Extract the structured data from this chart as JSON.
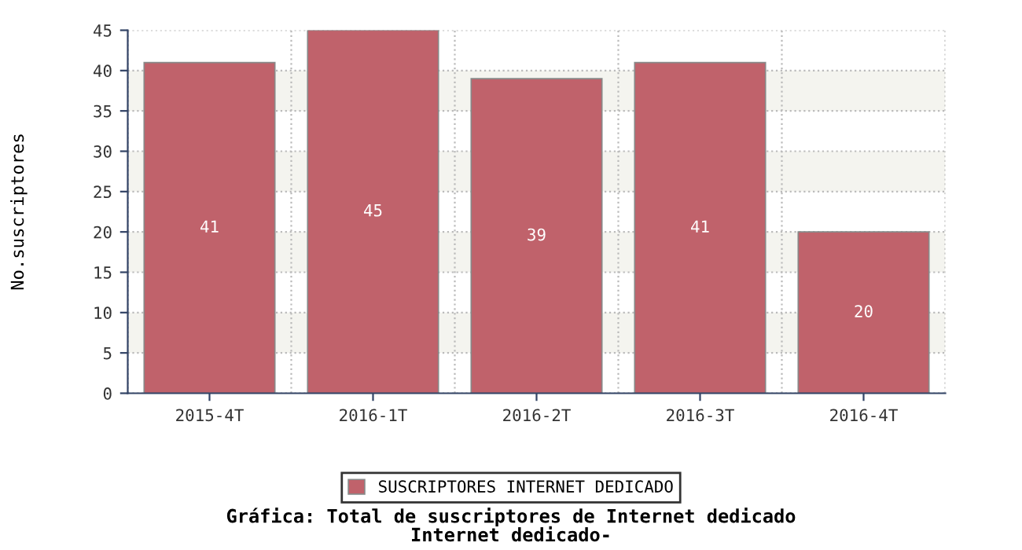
{
  "chart_data": {
    "type": "bar",
    "title": "Gráfica: Total de suscriptores de Internet dedicado",
    "subtitle": "Internet dedicado-",
    "ylabel": "No.suscriptores",
    "categories": [
      "2015-4T",
      "2016-1T",
      "2016-2T",
      "2016-3T",
      "2016-4T"
    ],
    "series": [
      {
        "name": "SUSCRIPTORES INTERNET DEDICADO",
        "color": "#c0626b",
        "values": [
          41,
          45,
          39,
          41,
          20
        ]
      }
    ],
    "ylim": [
      0,
      45
    ],
    "yticks": [
      0,
      5,
      10,
      15,
      20,
      25,
      30,
      35,
      40,
      45
    ],
    "bands": [
      {
        "axis": "y",
        "from": 5,
        "to": 10,
        "color": "#f4f4ef"
      },
      {
        "axis": "y",
        "from": 15,
        "to": 20,
        "color": "#f4f4ef"
      },
      {
        "axis": "y",
        "from": 25,
        "to": 30,
        "color": "#f4f4ef"
      },
      {
        "axis": "y",
        "from": 35,
        "to": 40,
        "color": "#f4f4ef"
      }
    ],
    "grid": true,
    "legend": "bottom",
    "data_labels": true
  }
}
